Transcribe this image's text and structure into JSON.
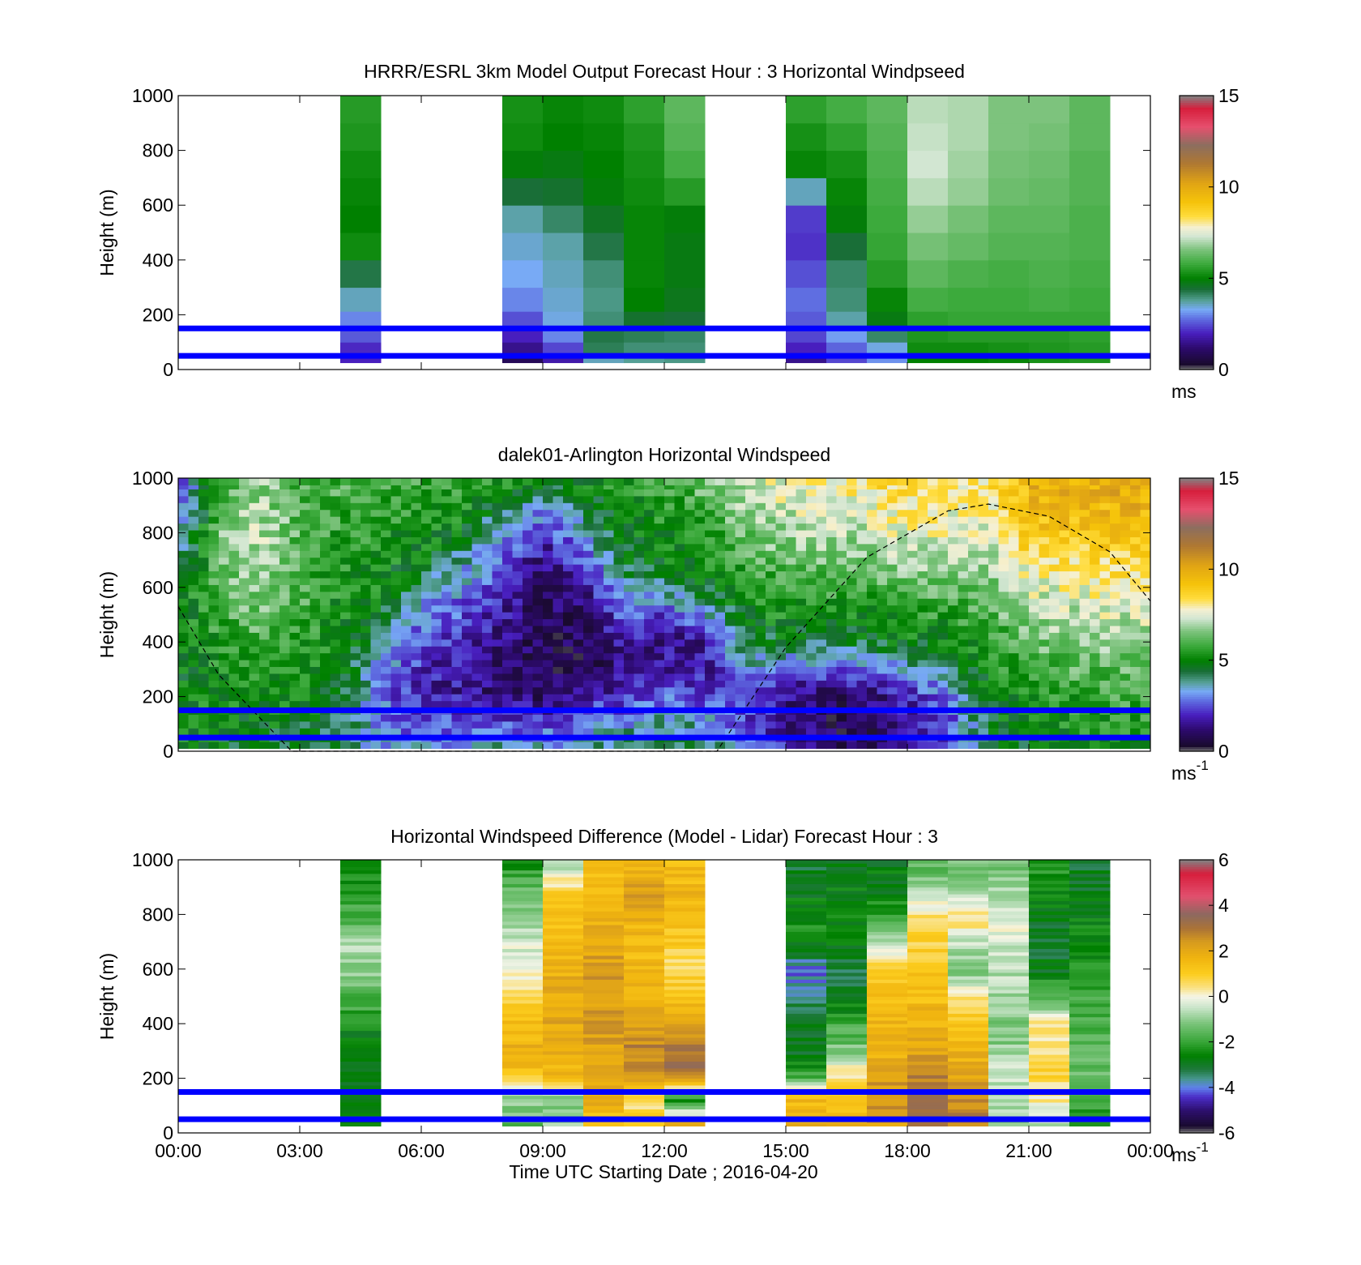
{
  "figure": {
    "xlabel": "Time UTC  Starting Date ; 2016-04-20",
    "x_ticks": [
      "00:00",
      "03:00",
      "06:00",
      "09:00",
      "12:00",
      "15:00",
      "18:00",
      "21:00",
      "00:00"
    ],
    "band_heights_m": [
      50,
      150
    ],
    "band_color": "#0000ff"
  },
  "chart_data": [
    {
      "type": "heatmap",
      "title": "HRRR/ESRL 3km Model Output   Forecast Hour : 3 Horizontal Windpseed",
      "ylabel": "Height (m)",
      "xlim_hours": [
        0,
        24
      ],
      "ylim": [
        0,
        1000
      ],
      "y_ticks": [
        "0",
        "200",
        "400",
        "600",
        "800",
        "1000"
      ],
      "colorbar": {
        "range": [
          0,
          15
        ],
        "ticks": [
          "0",
          "5",
          "10",
          "15"
        ],
        "unit": "ms",
        "unit_sup": ""
      },
      "colormap": "windspeed",
      "cells": {
        "x_hours": [
          4.5,
          8.5,
          9.5,
          10.5,
          11.5,
          12.5,
          15.5,
          16.5,
          17.5,
          18.5,
          19.5,
          20.5,
          21.5,
          22.5
        ],
        "y_levels_m": [
          25,
          75,
          125,
          175,
          250,
          350,
          450,
          550,
          650,
          750,
          850,
          950
        ]
      },
      "profiles": [
        {
          "hour": 4.5,
          "values": [
            2.0,
            2.1,
            2.6,
            3.0,
            3.6,
            4.3,
            5.2,
            5.0,
            5.1,
            5.2,
            5.4,
            5.5
          ]
        },
        {
          "hour": 8.5,
          "values": [
            0.9,
            1.5,
            2.0,
            2.5,
            3.0,
            3.3,
            3.5,
            3.7,
            4.4,
            4.9,
            5.2,
            5.3
          ]
        },
        {
          "hour": 9.5,
          "values": [
            1.8,
            2.4,
            3.0,
            3.4,
            3.5,
            3.6,
            3.7,
            4.1,
            4.5,
            4.8,
            5.0,
            5.1
          ]
        },
        {
          "hour": 10.5,
          "values": [
            3.6,
            4.2,
            4.3,
            4.0,
            3.9,
            4.0,
            4.3,
            4.6,
            4.9,
            5.0,
            5.1,
            5.2
          ]
        },
        {
          "hour": 11.5,
          "values": [
            3.8,
            4.0,
            4.2,
            4.5,
            5.0,
            5.1,
            5.1,
            5.1,
            5.2,
            5.3,
            5.4,
            5.6
          ]
        },
        {
          "hour": 12.5,
          "values": [
            3.9,
            4.0,
            4.1,
            4.4,
            4.7,
            4.8,
            4.8,
            4.9,
            5.5,
            5.9,
            6.1,
            6.2
          ]
        },
        {
          "hour": 15.5,
          "values": [
            1.5,
            2.0,
            2.4,
            2.6,
            2.8,
            2.5,
            2.2,
            2.3,
            3.6,
            5.1,
            5.3,
            5.6
          ]
        },
        {
          "hour": 16.5,
          "values": [
            2.4,
            2.7,
            3.2,
            3.7,
            4.0,
            4.1,
            4.4,
            4.9,
            5.1,
            5.3,
            5.6,
            5.9
          ]
        },
        {
          "hour": 17.5,
          "values": [
            3.1,
            3.4,
            4.1,
            4.8,
            5.1,
            5.5,
            5.7,
            5.8,
            5.9,
            6.0,
            6.1,
            6.2
          ]
        },
        {
          "hour": 18.5,
          "values": [
            5.0,
            5.2,
            5.4,
            5.6,
            5.9,
            6.2,
            6.5,
            6.8,
            7.1,
            7.3,
            7.2,
            7.1
          ]
        },
        {
          "hour": 19.5,
          "values": [
            5.0,
            5.2,
            5.5,
            5.7,
            5.8,
            6.0,
            6.3,
            6.5,
            6.8,
            6.9,
            7.0,
            7.0
          ]
        },
        {
          "hour": 20.5,
          "values": [
            5.1,
            5.3,
            5.5,
            5.7,
            5.8,
            5.9,
            6.1,
            6.2,
            6.4,
            6.5,
            6.6,
            6.6
          ]
        },
        {
          "hour": 21.5,
          "values": [
            5.3,
            5.4,
            5.5,
            5.7,
            5.9,
            6.0,
            6.1,
            6.2,
            6.3,
            6.4,
            6.5,
            6.6
          ]
        },
        {
          "hour": 22.5,
          "values": [
            5.4,
            5.5,
            5.6,
            5.7,
            5.8,
            5.9,
            6.0,
            6.0,
            6.1,
            6.1,
            6.2,
            6.2
          ]
        }
      ]
    },
    {
      "type": "heatmap",
      "title": "dalek01-Arlington  Horizontal Windspeed",
      "ylabel": "Height (m)",
      "xlim_hours": [
        0,
        24
      ],
      "ylim": [
        0,
        1000
      ],
      "y_ticks": [
        "0",
        "200",
        "400",
        "600",
        "800",
        "1000"
      ],
      "colorbar": {
        "range": [
          0,
          15
        ],
        "ticks": [
          "0",
          "5",
          "10",
          "15"
        ],
        "unit": "ms",
        "unit_sup": "-1"
      },
      "colormap": "windspeed",
      "cells": {
        "x_step_hours": 0.25,
        "y_step_m": 25
      },
      "profiles": [
        {
          "hour": 0,
          "values": [
            5.0,
            5.1,
            5.0,
            4.8,
            4.7,
            4.9,
            5.0,
            4.0,
            3.2,
            2.5,
            2.2
          ]
        },
        {
          "hour": 1,
          "values": [
            4.8,
            5.0,
            5.2,
            5.4,
            5.6,
            5.8,
            6.0,
            6.2,
            6.4,
            6.2,
            6.0
          ]
        },
        {
          "hour": 2,
          "values": [
            4.6,
            4.9,
            5.2,
            5.6,
            6.0,
            6.4,
            6.8,
            7.1,
            7.2,
            7.0,
            6.8
          ]
        },
        {
          "hour": 3,
          "values": [
            4.4,
            4.7,
            5.0,
            5.3,
            5.6,
            5.9,
            6.1,
            6.2,
            6.1,
            6.0,
            6.0
          ]
        },
        {
          "hour": 4,
          "values": [
            4.2,
            4.4,
            4.8,
            5.0,
            5.1,
            5.2,
            5.3,
            5.4,
            5.6,
            5.8,
            6.0
          ]
        },
        {
          "hour": 5,
          "values": [
            3.5,
            3.0,
            2.8,
            3.4,
            3.8,
            4.6,
            5.2,
            5.3,
            5.4,
            5.6,
            5.9
          ]
        },
        {
          "hour": 6,
          "values": [
            3.0,
            2.2,
            1.8,
            2.0,
            2.6,
            3.0,
            3.9,
            4.8,
            5.2,
            5.5,
            5.8
          ]
        },
        {
          "hour": 7,
          "values": [
            3.5,
            2.4,
            1.6,
            1.6,
            2.0,
            2.5,
            3.1,
            3.7,
            4.6,
            5.3,
            5.6
          ]
        },
        {
          "hour": 8,
          "values": [
            3.6,
            2.2,
            1.2,
            1.2,
            1.4,
            1.6,
            2.0,
            2.5,
            3.0,
            4.0,
            5.2
          ]
        },
        {
          "hour": 9,
          "values": [
            3.2,
            2.0,
            0.9,
            0.8,
            0.8,
            0.9,
            1.1,
            1.4,
            2.0,
            3.2,
            4.6
          ]
        },
        {
          "hour": 10,
          "values": [
            3.8,
            2.8,
            1.4,
            0.8,
            0.8,
            1.0,
            1.5,
            2.3,
            3.4,
            4.2,
            5.0
          ]
        },
        {
          "hour": 11,
          "values": [
            4.2,
            3.0,
            2.0,
            1.5,
            1.8,
            2.6,
            3.6,
            4.5,
            4.9,
            5.2,
            5.5
          ]
        },
        {
          "hour": 12,
          "values": [
            4.5,
            3.6,
            2.6,
            1.8,
            1.4,
            2.2,
            4.0,
            4.9,
            5.2,
            5.4,
            5.7
          ]
        },
        {
          "hour": 13,
          "values": [
            4.3,
            3.2,
            2.3,
            1.6,
            1.6,
            3.2,
            4.6,
            5.1,
            5.5,
            5.9,
            6.3
          ]
        },
        {
          "hour": 14,
          "values": [
            2.8,
            2.4,
            2.6,
            3.4,
            4.3,
            5.0,
            5.4,
            5.8,
            6.3,
            6.8,
            7.2
          ]
        },
        {
          "hour": 15,
          "values": [
            1.8,
            1.6,
            1.5,
            3.0,
            4.6,
            5.2,
            5.8,
            6.4,
            6.9,
            7.3,
            7.6
          ]
        },
        {
          "hour": 16,
          "values": [
            0.9,
            0.8,
            1.1,
            2.8,
            4.4,
            5.3,
            5.9,
            6.4,
            7.0,
            7.5,
            7.9
          ]
        },
        {
          "hour": 17,
          "values": [
            0.8,
            0.9,
            1.2,
            3.0,
            4.6,
            5.2,
            5.8,
            6.3,
            7.0,
            7.6,
            8.2
          ]
        },
        {
          "hour": 18,
          "values": [
            1.4,
            1.6,
            2.0,
            3.6,
            4.8,
            5.6,
            6.4,
            7.0,
            7.6,
            8.0,
            8.6
          ]
        },
        {
          "hour": 19,
          "values": [
            2.6,
            2.4,
            3.0,
            4.2,
            5.0,
            5.6,
            6.2,
            6.8,
            7.6,
            7.8,
            8.0
          ]
        },
        {
          "hour": 20,
          "values": [
            4.2,
            4.6,
            5.0,
            5.2,
            5.6,
            6.0,
            6.4,
            6.9,
            7.3,
            7.8,
            8.3
          ]
        },
        {
          "hour": 21,
          "values": [
            4.8,
            5.0,
            5.4,
            5.8,
            6.3,
            6.8,
            7.4,
            8.1,
            8.9,
            9.3,
            9.7
          ]
        },
        {
          "hour": 22,
          "values": [
            5.0,
            5.3,
            5.7,
            6.1,
            6.6,
            7.1,
            7.7,
            8.3,
            9.0,
            9.5,
            9.8
          ]
        },
        {
          "hour": 23,
          "values": [
            5.2,
            5.5,
            5.9,
            6.3,
            6.8,
            7.3,
            7.9,
            8.5,
            9.1,
            9.6,
            9.9
          ]
        },
        {
          "hour": 24,
          "values": [
            5.3,
            5.6,
            6.0,
            6.4,
            6.9,
            7.4,
            8.0,
            8.6,
            9.2,
            9.7,
            10.0
          ]
        }
      ],
      "sun_curve": {
        "color": "#000000",
        "dash": true,
        "points": [
          [
            0,
            530
          ],
          [
            1,
            280
          ],
          [
            2.8,
            0
          ],
          [
            13.3,
            0
          ],
          [
            15,
            380
          ],
          [
            17,
            710
          ],
          [
            19,
            880
          ],
          [
            20,
            905
          ],
          [
            21.5,
            860
          ],
          [
            23,
            730
          ],
          [
            24,
            550
          ]
        ]
      }
    },
    {
      "type": "heatmap",
      "title": "Horizontal Windspeed Difference (Model - Lidar) Forecast Hour : 3",
      "ylabel": "Height (m)",
      "xlim_hours": [
        0,
        24
      ],
      "ylim": [
        0,
        1000
      ],
      "y_ticks": [
        "0",
        "200",
        "400",
        "600",
        "800",
        "1000"
      ],
      "colorbar": {
        "range": [
          -6,
          6
        ],
        "ticks": [
          "-6",
          "-4",
          "-2",
          "0",
          "2",
          "4",
          "6"
        ],
        "unit": "ms",
        "unit_sup": "-1"
      },
      "colormap": "difference",
      "cells": {
        "x_hours": [
          4.5,
          8.5,
          9.5,
          10.5,
          11.5,
          12.5,
          15.5,
          16.5,
          17.5,
          18.5,
          19.5,
          20.5,
          21.5,
          22.5
        ],
        "y_step_m": 12.5
      },
      "profiles": [
        {
          "hour": 4.5,
          "values": [
            -2.2,
            -2.8,
            -3.0,
            -2.8,
            -2.4,
            -1.6,
            -1.0,
            -0.8,
            -1.6,
            -2.2,
            -2.6
          ]
        },
        {
          "hour": 8.5,
          "values": [
            -1.5,
            -1.0,
            1.2,
            1.8,
            1.4,
            0.6,
            0.2,
            -0.4,
            -0.8,
            -1.4,
            -2.2
          ]
        },
        {
          "hour": 9.5,
          "values": [
            -1.0,
            -1.2,
            1.6,
            1.9,
            2.0,
            2.0,
            1.8,
            1.6,
            1.4,
            0.8,
            -0.6
          ]
        },
        {
          "hour": 10.5,
          "values": [
            1.2,
            1.8,
            1.9,
            2.2,
            2.4,
            2.2,
            2.4,
            2.0,
            1.8,
            1.6,
            1.2
          ]
        },
        {
          "hour": 11.5,
          "values": [
            1.0,
            0.4,
            2.4,
            2.8,
            2.2,
            1.8,
            1.6,
            1.4,
            1.8,
            2.2,
            1.8
          ]
        },
        {
          "hour": 12.5,
          "values": [
            2.4,
            -2.6,
            3.0,
            3.2,
            1.8,
            1.4,
            0.6,
            1.0,
            1.4,
            1.6,
            1.4
          ]
        },
        {
          "hour": 15.5,
          "values": [
            1.8,
            1.6,
            -2.0,
            -3.0,
            -2.8,
            -3.4,
            -4.0,
            -2.6,
            -2.4,
            -2.8,
            -3.0
          ]
        },
        {
          "hour": 16.5,
          "values": [
            1.6,
            1.4,
            0.4,
            -1.2,
            -2.0,
            -3.0,
            -3.2,
            -2.8,
            -2.6,
            -2.6,
            -2.8
          ]
        },
        {
          "hour": 17.5,
          "values": [
            2.2,
            2.4,
            2.2,
            1.6,
            1.6,
            1.4,
            1.2,
            -0.6,
            -2.2,
            -2.6,
            -2.8
          ]
        },
        {
          "hour": 18.5,
          "values": [
            3.2,
            3.4,
            2.8,
            2.0,
            1.8,
            1.4,
            1.2,
            0.8,
            0.6,
            -0.4,
            -1.6
          ]
        },
        {
          "hour": 19.5,
          "values": [
            2.8,
            2.6,
            2.2,
            1.6,
            1.2,
            0.2,
            -1.2,
            -0.6,
            0.6,
            -0.8,
            -1.2
          ]
        },
        {
          "hour": 20.5,
          "values": [
            -0.8,
            -0.6,
            -0.4,
            -1.0,
            -1.2,
            -0.8,
            -0.6,
            -0.4,
            -0.2,
            -0.6,
            -1.4
          ]
        },
        {
          "hour": 21.5,
          "values": [
            -0.8,
            0.2,
            0.8,
            0.6,
            0.2,
            -1.6,
            -2.8,
            -3.0,
            -2.8,
            -2.4,
            -2.2
          ]
        },
        {
          "hour": 22.5,
          "values": [
            -2.2,
            -2.0,
            -1.4,
            -1.6,
            -1.8,
            -2.0,
            -2.4,
            -2.6,
            -2.6,
            -2.8,
            -3.0
          ]
        }
      ]
    }
  ]
}
